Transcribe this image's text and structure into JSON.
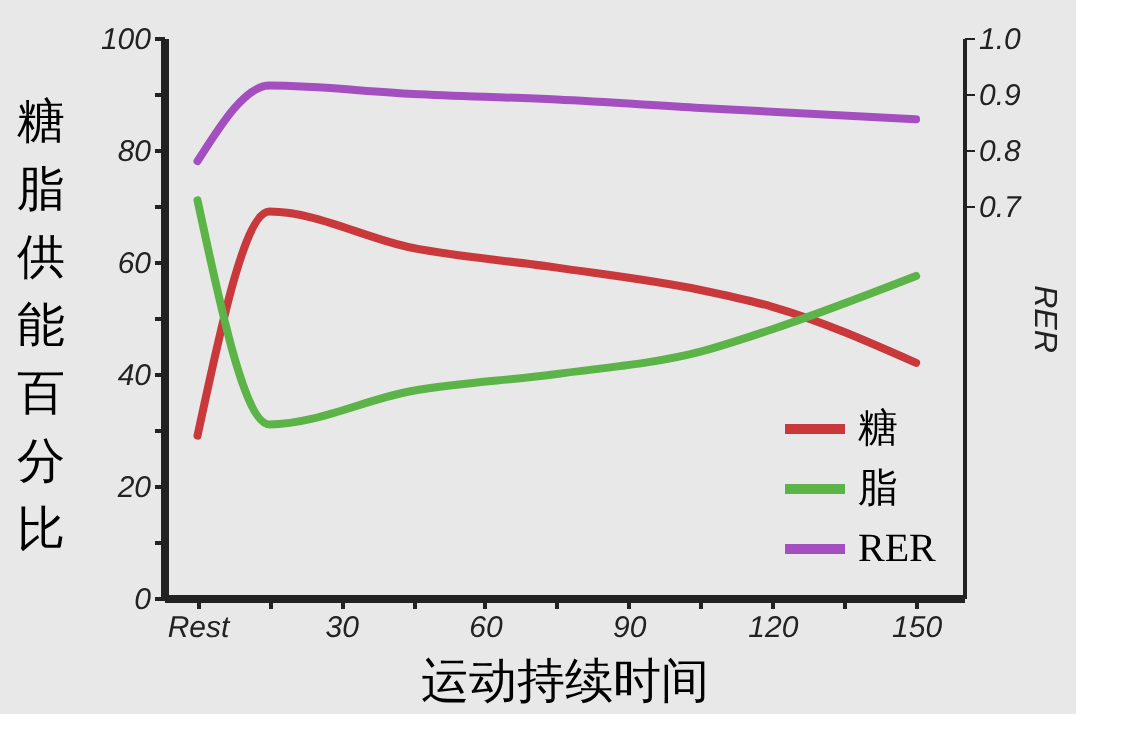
{
  "chart_data": {
    "type": "line",
    "xlabel": "运动持续时间",
    "ylabel": "糖脂供能百分比",
    "y2label": "RER",
    "xlim": [
      -7,
      160
    ],
    "xticks": [
      {
        "value": 0,
        "label": "Rest"
      },
      {
        "value": 15,
        "label": null
      },
      30,
      {
        "value": 45,
        "label": null
      },
      60,
      {
        "value": 75,
        "label": null
      },
      90,
      {
        "value": 105,
        "label": null
      },
      120,
      {
        "value": 135,
        "label": null
      },
      150
    ],
    "ylim": [
      0,
      100
    ],
    "yticks": [
      0,
      {
        "value": 10,
        "label": null
      },
      20,
      {
        "value": 30,
        "label": null
      },
      40,
      {
        "value": 50,
        "label": null
      },
      60,
      {
        "value": 70,
        "label": null
      },
      80,
      {
        "value": 90,
        "label": null
      },
      100
    ],
    "y2lim": [
      0,
      1.0
    ],
    "y2ticks": [
      {
        "value": 0.7,
        "label": "0.7"
      },
      {
        "value": 0.8,
        "label": "0.8"
      },
      {
        "value": 0.9,
        "label": "0.9"
      },
      {
        "value": 1.0,
        "label": "1.0"
      }
    ],
    "grid": false,
    "legend": "bottom right",
    "marker": "none",
    "line_style": "solid",
    "series": [
      {
        "name": "糖",
        "color": "#c9383a",
        "x": [
          0,
          15,
          45,
          75,
          105,
          120,
          150
        ],
        "values": [
          29,
          69,
          62.5,
          59,
          55,
          52,
          42
        ]
      },
      {
        "name": "脂",
        "color": "#5cb347",
        "x": [
          0,
          15,
          45,
          75,
          105,
          120,
          150
        ],
        "values": [
          71,
          31,
          37,
          40,
          44,
          48,
          57.5
        ]
      },
      {
        "name": "RER",
        "color": "#a44fc0",
        "axis": "y2",
        "x": [
          0,
          15,
          45,
          75,
          105,
          150
        ],
        "values": [
          0.78,
          0.915,
          0.9,
          0.89,
          0.875,
          0.855
        ]
      }
    ]
  }
}
